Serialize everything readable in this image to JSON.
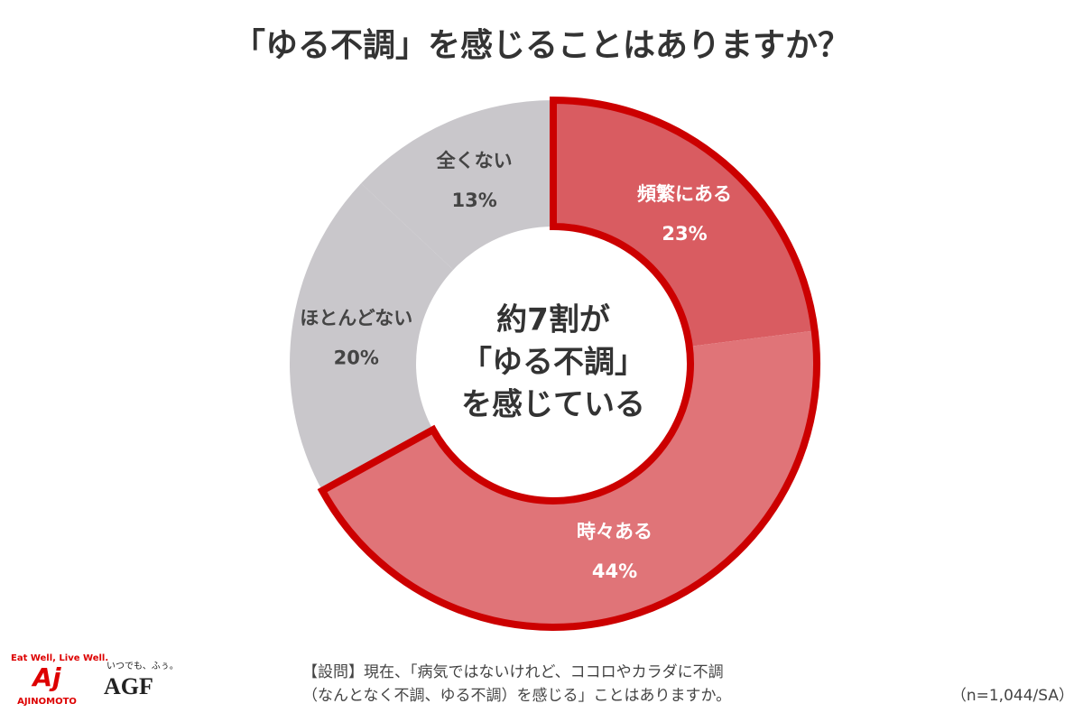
{
  "chart_data": {
    "type": "donut",
    "title": "「ゆる不調」を感じることはありますか？",
    "categories": [
      "頻繁にある",
      "時々ある",
      "ほとんどない",
      "全くない"
    ],
    "values": [
      23,
      44,
      20,
      13
    ],
    "value_labels": [
      "23%",
      "44%",
      "20%",
      "13%"
    ],
    "colors": [
      "#d95c61",
      "#e07478",
      "#c9c7cb",
      "#c9c7cb"
    ],
    "label_colors": [
      "#ffffff",
      "#ffffff",
      "#444444",
      "#444444"
    ],
    "outlined": [
      true,
      true,
      false,
      false
    ],
    "outline_color": "#cc0000",
    "center_text": [
      "約7割が",
      "「ゆる不調」",
      "を感じている"
    ],
    "note": [
      "【設問】現在、「病気ではないけれど、ココロやカラダに不調",
      "（なんとなく不調、ゆる不調）を感じる」ことはありますか。"
    ],
    "sample": "（n=1,044/SA）"
  },
  "logos": {
    "ajinomoto_tagline": "Eat Well, Live Well.",
    "ajinomoto_mark": "Aj",
    "ajinomoto": "AJINOMOTO",
    "agf_tagline": "いつでも、ふぅ。",
    "agf": "AGF"
  }
}
